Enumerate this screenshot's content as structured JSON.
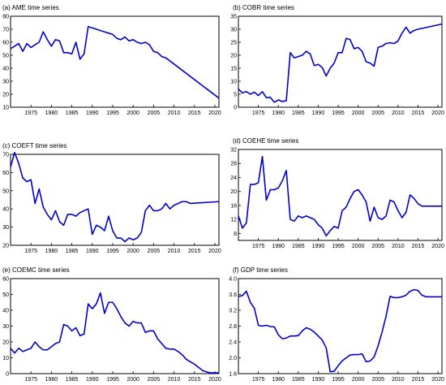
{
  "figure": {
    "line_color": "#0000cc",
    "axis_color": "#000000",
    "background": "#ffffff"
  },
  "chart_data": [
    {
      "type": "line",
      "title": "(a) AME time series",
      "xlabel": "",
      "ylabel": "",
      "xlim": [
        1970,
        2021
      ],
      "ylim": [
        10,
        80
      ],
      "xticks": [
        "1975",
        "1980",
        "1985",
        "1990",
        "1995",
        "2000",
        "2005",
        "2010",
        "2015",
        "2020"
      ],
      "yticks": [
        "10",
        "20",
        "30",
        "40",
        "50",
        "60",
        "70",
        "80"
      ],
      "grid": false,
      "series": [
        {
          "x": [
            1970,
            1971,
            1972,
            1973,
            1974,
            1975,
            1976,
            1977,
            1978,
            1979,
            1980,
            1981,
            1982,
            1983,
            1984,
            1985,
            1986,
            1987,
            1988,
            1989,
            1990,
            1991,
            1992,
            1993,
            1994,
            1995,
            1996,
            1997,
            1998,
            1999,
            2000,
            2001,
            2002,
            2003,
            2004,
            2005,
            2006,
            2007,
            2008,
            2021
          ],
          "values": [
            55,
            57,
            59,
            53,
            59,
            56,
            58,
            60,
            68,
            62,
            57,
            62,
            61,
            52,
            52,
            51,
            60,
            47,
            51,
            72,
            71,
            70,
            69,
            68,
            67,
            66,
            63,
            62,
            64,
            61,
            62,
            60,
            59,
            60,
            58,
            53,
            52,
            49,
            48,
            17
          ]
        }
      ]
    },
    {
      "type": "line",
      "title": "(b) COBR time series",
      "xlabel": "",
      "ylabel": "",
      "xlim": [
        1970,
        2021
      ],
      "ylim": [
        0,
        35
      ],
      "xticks": [
        "1975",
        "1980",
        "1985",
        "1990",
        "1995",
        "2000",
        "2005",
        "2010",
        "2015",
        "2020"
      ],
      "yticks": [
        "0",
        "5",
        "10",
        "15",
        "20",
        "25",
        "30",
        "35"
      ],
      "grid": false,
      "series": [
        {
          "x": [
            1970,
            1971,
            1972,
            1973,
            1974,
            1975,
            1976,
            1977,
            1978,
            1979,
            1980,
            1981,
            1982,
            1983,
            1984,
            1985,
            1986,
            1987,
            1988,
            1989,
            1990,
            1991,
            1992,
            1993,
            1994,
            1995,
            1996,
            1997,
            1998,
            1999,
            2000,
            2001,
            2002,
            2003,
            2004,
            2005,
            2006,
            2007,
            2008,
            2009,
            2010,
            2011,
            2012,
            2013,
            2014,
            2015,
            2021
          ],
          "values": [
            7,
            5.5,
            6,
            5,
            5.8,
            4.5,
            6,
            3.7,
            3.8,
            1.9,
            2.8,
            2.2,
            2.5,
            21,
            19,
            19.5,
            20,
            21.5,
            20.5,
            16,
            16.5,
            15.3,
            12,
            15,
            17,
            21,
            21,
            26.5,
            26,
            22.5,
            23,
            21.5,
            17.5,
            17,
            15.8,
            23,
            23.5,
            24.5,
            24.8,
            24.5,
            25.5,
            28.5,
            30.8,
            28.5,
            29.5,
            30,
            32
          ]
        }
      ]
    },
    {
      "type": "line",
      "title": "(c) COEFT time series",
      "xlabel": "",
      "ylabel": "",
      "xlim": [
        1970,
        2021
      ],
      "ylim": [
        20,
        70
      ],
      "xticks": [
        "1975",
        "1980",
        "1985",
        "1990",
        "1995",
        "2000",
        "2005",
        "2010",
        "2015",
        "2020"
      ],
      "yticks": [
        "20",
        "30",
        "40",
        "50",
        "60",
        "70"
      ],
      "grid": false,
      "series": [
        {
          "x": [
            1970,
            1971,
            1972,
            1973,
            1974,
            1975,
            1976,
            1977,
            1978,
            1979,
            1980,
            1981,
            1982,
            1983,
            1984,
            1985,
            1986,
            1987,
            1988,
            1989,
            1990,
            1991,
            1992,
            1993,
            1994,
            1995,
            1996,
            1997,
            1998,
            1999,
            2000,
            2001,
            2002,
            2003,
            2004,
            2005,
            2006,
            2007,
            2008,
            2009,
            2010,
            2011,
            2012,
            2013,
            2014,
            2021
          ],
          "values": [
            63,
            71,
            65,
            57,
            55,
            56,
            43,
            51,
            41,
            37,
            34,
            39,
            33,
            31,
            37,
            37,
            36,
            38,
            39,
            40,
            26,
            31,
            30,
            28,
            36,
            28,
            24,
            24,
            22,
            24,
            23,
            24,
            27,
            39,
            42,
            39,
            39,
            40,
            43,
            40,
            42,
            43,
            44,
            44,
            43,
            44
          ]
        }
      ]
    },
    {
      "type": "line",
      "title": "(d) COEHE time series",
      "xlabel": "",
      "ylabel": "",
      "xlim": [
        1970,
        2021
      ],
      "ylim": [
        6,
        32
      ],
      "xticks": [
        "1975",
        "1980",
        "1985",
        "1990",
        "1995",
        "2000",
        "2005",
        "2010",
        "2015",
        "2020"
      ],
      "yticks": [
        "8",
        "12",
        "16",
        "20",
        "24",
        "28",
        "32"
      ],
      "grid": false,
      "series": [
        {
          "x": [
            1970,
            1971,
            1972,
            1973,
            1974,
            1975,
            1976,
            1977,
            1978,
            1979,
            1980,
            1981,
            1982,
            1983,
            1984,
            1985,
            1986,
            1987,
            1988,
            1989,
            1990,
            1991,
            1992,
            1993,
            1994,
            1995,
            1996,
            1997,
            1998,
            1999,
            2000,
            2001,
            2002,
            2003,
            2004,
            2005,
            2006,
            2007,
            2008,
            2009,
            2010,
            2011,
            2012,
            2013,
            2014,
            2015,
            2016,
            2017,
            2018,
            2021
          ],
          "values": [
            13,
            9.5,
            11,
            22,
            22,
            22.5,
            30,
            17.5,
            20.5,
            20.5,
            21,
            23,
            26,
            12,
            11.5,
            13,
            12.5,
            13,
            12.5,
            12,
            10.5,
            9.5,
            7.3,
            8.8,
            10,
            9.5,
            14.5,
            15.5,
            18,
            20,
            20.5,
            19,
            17,
            11.5,
            15.5,
            12.5,
            12,
            13,
            17.5,
            17,
            14.5,
            12.5,
            14,
            19,
            18,
            16.5,
            15.8,
            15.8,
            15.8,
            15.8
          ]
        }
      ]
    },
    {
      "type": "line",
      "title": "(e) COEMC time series",
      "xlabel": "",
      "ylabel": "",
      "xlim": [
        1970,
        2021
      ],
      "ylim": [
        0,
        60
      ],
      "xticks": [
        "1975",
        "1980",
        "1985",
        "1990",
        "1995",
        "2000",
        "2005",
        "2010",
        "2015",
        "2020"
      ],
      "yticks": [
        "0",
        "10",
        "20",
        "30",
        "40",
        "50",
        "60"
      ],
      "grid": false,
      "series": [
        {
          "x": [
            1970,
            1971,
            1972,
            1973,
            1974,
            1975,
            1976,
            1977,
            1978,
            1979,
            1980,
            1981,
            1982,
            1983,
            1984,
            1985,
            1986,
            1987,
            1988,
            1989,
            1990,
            1991,
            1992,
            1993,
            1994,
            1995,
            1996,
            1997,
            1998,
            1999,
            2000,
            2001,
            2002,
            2003,
            2004,
            2005,
            2006,
            2007,
            2008,
            2009,
            2010,
            2011,
            2012,
            2013,
            2014,
            2015,
            2016,
            2017,
            2018,
            2019,
            2020,
            2021
          ],
          "values": [
            16,
            13,
            16,
            14,
            15,
            16,
            20,
            17,
            15,
            15,
            17,
            19,
            20,
            31,
            30,
            27,
            29,
            24,
            25,
            44,
            41,
            44,
            51,
            38,
            45,
            45,
            41,
            36,
            32,
            30,
            33,
            32,
            32,
            26,
            27,
            27,
            22,
            19,
            16,
            15.5,
            15.5,
            14,
            12,
            9,
            7.5,
            6,
            4,
            2,
            1,
            0.5,
            0.5,
            0.5
          ]
        }
      ]
    },
    {
      "type": "line",
      "title": "(f) GDP time series",
      "xlabel": "",
      "ylabel": "",
      "xlim": [
        1970,
        2021
      ],
      "ylim": [
        1.6,
        4.0
      ],
      "xticks": [
        "1975",
        "1980",
        "1985",
        "1990",
        "1995",
        "2000",
        "2005",
        "2010",
        "2015",
        "2020"
      ],
      "yticks": [
        "1.6",
        "2.0",
        "2.4",
        "2.8",
        "3.2",
        "3.6",
        "4.0"
      ],
      "grid": false,
      "series": [
        {
          "x": [
            1970,
            1971,
            1972,
            1973,
            1974,
            1975,
            1976,
            1977,
            1978,
            1979,
            1980,
            1981,
            1982,
            1983,
            1984,
            1985,
            1986,
            1987,
            1988,
            1989,
            1990,
            1991,
            1992,
            1993,
            1994,
            1995,
            1996,
            1997,
            1998,
            1999,
            2000,
            2001,
            2002,
            2003,
            2004,
            2005,
            2006,
            2007,
            2008,
            2009,
            2010,
            2011,
            2012,
            2013,
            2014,
            2015,
            2016,
            2017,
            2018,
            2019,
            2020,
            2021
          ],
          "values": [
            3.55,
            3.57,
            3.68,
            3.4,
            3.25,
            2.82,
            2.8,
            2.82,
            2.79,
            2.78,
            2.58,
            2.48,
            2.5,
            2.55,
            2.55,
            2.56,
            2.68,
            2.76,
            2.72,
            2.65,
            2.55,
            2.45,
            2.25,
            1.65,
            1.66,
            1.8,
            1.92,
            2.0,
            2.07,
            2.08,
            2.08,
            2.1,
            1.9,
            1.92,
            2.02,
            2.3,
            2.65,
            3.05,
            3.55,
            3.52,
            3.52,
            3.54,
            3.58,
            3.68,
            3.72,
            3.7,
            3.58,
            3.54,
            3.54,
            3.54,
            3.54,
            3.54
          ]
        }
      ]
    }
  ]
}
